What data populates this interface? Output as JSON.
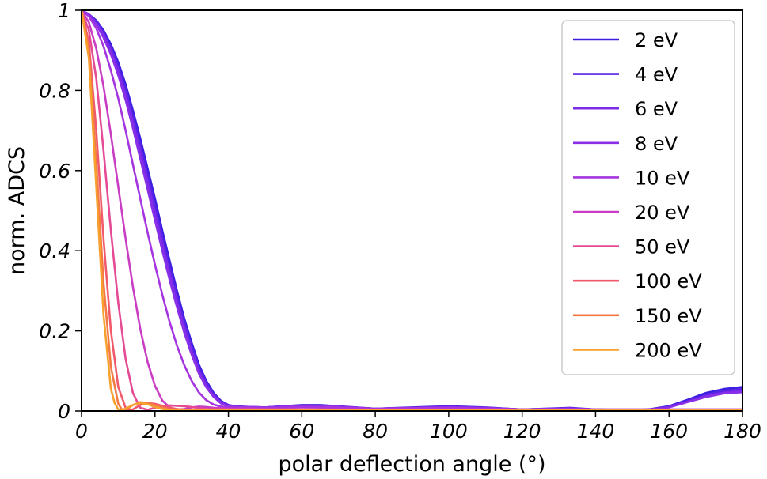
{
  "chart_data": {
    "type": "line",
    "title": "",
    "xlabel": "polar deflection angle (°)",
    "ylabel": "norm. ADCS",
    "xlim": [
      0,
      180
    ],
    "ylim": [
      0,
      1
    ],
    "xticks": [
      0,
      20,
      40,
      60,
      80,
      100,
      120,
      140,
      160,
      180
    ],
    "yticks": [
      0,
      0.2,
      0.4,
      0.6,
      0.8,
      1
    ],
    "ytick_labels": [
      "0",
      "0.2",
      "0.4",
      "0.6",
      "0.8",
      "1"
    ],
    "grid": false,
    "legend_position": "top-right",
    "series": [
      {
        "name": "2 eV",
        "color": "#3a1fe0",
        "x": [
          0,
          2,
          4,
          6,
          8,
          10,
          12,
          14,
          16,
          18,
          20,
          22,
          24,
          26,
          28,
          30,
          32,
          34,
          36,
          38,
          40,
          42,
          44,
          46,
          50,
          55,
          60,
          65,
          70,
          80,
          90,
          100,
          110,
          120,
          133,
          140,
          150,
          155,
          160,
          165,
          170,
          175,
          180
        ],
        "y": [
          1,
          0.99,
          0.975,
          0.95,
          0.915,
          0.87,
          0.815,
          0.75,
          0.68,
          0.605,
          0.53,
          0.45,
          0.375,
          0.3,
          0.23,
          0.17,
          0.115,
          0.075,
          0.045,
          0.025,
          0.015,
          0.012,
          0.011,
          0.01,
          0.009,
          0.012,
          0.015,
          0.015,
          0.012,
          0.006,
          0.009,
          0.012,
          0.009,
          0.004,
          0.008,
          0.004,
          0.002,
          0.005,
          0.012,
          0.028,
          0.045,
          0.055,
          0.06
        ]
      },
      {
        "name": "4 eV",
        "color": "#5a22e6",
        "x": [
          0,
          2,
          4,
          6,
          8,
          10,
          12,
          14,
          16,
          18,
          20,
          22,
          24,
          26,
          28,
          30,
          32,
          34,
          36,
          38,
          40,
          42,
          44,
          46,
          50,
          55,
          60,
          65,
          70,
          80,
          90,
          100,
          110,
          120,
          133,
          140,
          150,
          155,
          160,
          165,
          170,
          175,
          180
        ],
        "y": [
          1,
          0.99,
          0.972,
          0.945,
          0.908,
          0.86,
          0.803,
          0.737,
          0.665,
          0.59,
          0.513,
          0.435,
          0.36,
          0.288,
          0.22,
          0.16,
          0.108,
          0.07,
          0.042,
          0.023,
          0.014,
          0.011,
          0.01,
          0.01,
          0.009,
          0.012,
          0.014,
          0.014,
          0.011,
          0.006,
          0.008,
          0.011,
          0.008,
          0.004,
          0.007,
          0.004,
          0.002,
          0.004,
          0.01,
          0.025,
          0.04,
          0.05,
          0.055
        ]
      },
      {
        "name": "6 eV",
        "color": "#7a2ce8",
        "x": [
          0,
          2,
          4,
          6,
          8,
          10,
          12,
          14,
          16,
          18,
          20,
          22,
          24,
          26,
          28,
          30,
          32,
          34,
          36,
          38,
          40,
          42,
          44,
          46,
          50,
          55,
          60,
          65,
          70,
          80,
          90,
          100,
          110,
          120,
          133,
          140,
          150,
          155,
          160,
          165,
          170,
          175,
          180
        ],
        "y": [
          1,
          0.99,
          0.97,
          0.94,
          0.9,
          0.85,
          0.79,
          0.722,
          0.648,
          0.572,
          0.495,
          0.418,
          0.344,
          0.274,
          0.208,
          0.15,
          0.1,
          0.064,
          0.038,
          0.021,
          0.013,
          0.011,
          0.01,
          0.01,
          0.009,
          0.011,
          0.013,
          0.013,
          0.011,
          0.006,
          0.008,
          0.01,
          0.008,
          0.004,
          0.007,
          0.004,
          0.002,
          0.004,
          0.01,
          0.023,
          0.037,
          0.046,
          0.05
        ]
      },
      {
        "name": "8 eV",
        "color": "#8a2ee8",
        "x": [
          0,
          2,
          4,
          6,
          8,
          10,
          12,
          14,
          16,
          18,
          20,
          22,
          24,
          26,
          28,
          30,
          32,
          34,
          36,
          38,
          40,
          42,
          44,
          46,
          50,
          55,
          60,
          65,
          70,
          80,
          90,
          100,
          110,
          120,
          133,
          140,
          150,
          155,
          160,
          165,
          170,
          175,
          180
        ],
        "y": [
          1,
          0.988,
          0.965,
          0.932,
          0.89,
          0.838,
          0.776,
          0.706,
          0.63,
          0.553,
          0.476,
          0.4,
          0.327,
          0.259,
          0.195,
          0.14,
          0.093,
          0.059,
          0.035,
          0.019,
          0.012,
          0.01,
          0.01,
          0.01,
          0.009,
          0.011,
          0.013,
          0.013,
          0.011,
          0.006,
          0.008,
          0.01,
          0.008,
          0.004,
          0.007,
          0.004,
          0.002,
          0.004,
          0.009,
          0.022,
          0.035,
          0.044,
          0.047
        ]
      },
      {
        "name": "10 eV",
        "color": "#a535e0",
        "x": [
          0,
          2,
          4,
          6,
          8,
          10,
          12,
          14,
          16,
          18,
          20,
          22,
          24,
          26,
          28,
          30,
          32,
          34,
          36,
          38,
          40,
          42,
          44,
          46,
          50,
          55,
          60,
          70,
          80,
          90,
          100,
          110,
          120,
          140,
          160,
          180
        ],
        "y": [
          1,
          0.985,
          0.955,
          0.91,
          0.85,
          0.78,
          0.7,
          0.615,
          0.53,
          0.445,
          0.365,
          0.29,
          0.222,
          0.163,
          0.114,
          0.075,
          0.046,
          0.027,
          0.016,
          0.011,
          0.01,
          0.01,
          0.01,
          0.009,
          0.008,
          0.009,
          0.01,
          0.009,
          0.006,
          0.007,
          0.008,
          0.006,
          0.004,
          0.004,
          0.004,
          0.004
        ]
      },
      {
        "name": "20 eV",
        "color": "#c93cc4",
        "x": [
          0,
          2,
          4,
          6,
          8,
          10,
          12,
          14,
          16,
          18,
          20,
          22,
          24,
          26,
          28,
          30,
          32,
          34,
          36,
          40,
          45,
          50,
          60,
          80,
          100,
          120,
          140,
          160,
          180
        ],
        "y": [
          1,
          0.97,
          0.905,
          0.81,
          0.69,
          0.56,
          0.43,
          0.31,
          0.205,
          0.122,
          0.063,
          0.026,
          0.009,
          0.004,
          0.005,
          0.009,
          0.011,
          0.01,
          0.008,
          0.006,
          0.006,
          0.005,
          0.005,
          0.004,
          0.004,
          0.004,
          0.004,
          0.004,
          0.004
        ]
      },
      {
        "name": "50 eV",
        "color": "#e54a95",
        "x": [
          0,
          2,
          4,
          6,
          8,
          10,
          12,
          14,
          16,
          18,
          20,
          22,
          24,
          26,
          28,
          30,
          32,
          34,
          40,
          50,
          60,
          80,
          100,
          120,
          140,
          160,
          180
        ],
        "y": [
          1,
          0.95,
          0.83,
          0.65,
          0.45,
          0.27,
          0.13,
          0.045,
          0.008,
          0.003,
          0.008,
          0.013,
          0.014,
          0.013,
          0.012,
          0.01,
          0.007,
          0.005,
          0.004,
          0.004,
          0.004,
          0.003,
          0.003,
          0.003,
          0.003,
          0.003,
          0.003
        ]
      },
      {
        "name": "100 eV",
        "color": "#f05a6a",
        "x": [
          0,
          2,
          4,
          6,
          8,
          10,
          12,
          13,
          14,
          16,
          18,
          20,
          22,
          24,
          26,
          30,
          40,
          60,
          100,
          140,
          180
        ],
        "y": [
          1,
          0.92,
          0.7,
          0.43,
          0.2,
          0.06,
          0.008,
          0.002,
          0.004,
          0.015,
          0.02,
          0.018,
          0.013,
          0.008,
          0.005,
          0.003,
          0.003,
          0.002,
          0.002,
          0.002,
          0.002
        ]
      },
      {
        "name": "150 eV",
        "color": "#f47a45",
        "x": [
          0,
          2,
          4,
          6,
          8,
          10,
          11,
          12,
          13,
          14,
          16,
          18,
          20,
          22,
          24,
          28,
          40,
          60,
          100,
          140,
          180
        ],
        "y": [
          1,
          0.9,
          0.62,
          0.32,
          0.11,
          0.018,
          0.004,
          0.003,
          0.008,
          0.015,
          0.022,
          0.02,
          0.014,
          0.008,
          0.004,
          0.002,
          0.002,
          0.002,
          0.002,
          0.002,
          0.002
        ]
      },
      {
        "name": "200 eV",
        "color": "#f7a02e",
        "x": [
          0,
          2,
          4,
          6,
          8,
          9,
          10,
          11,
          12,
          14,
          16,
          18,
          20,
          22,
          24,
          28,
          40,
          60,
          100,
          140,
          180
        ],
        "y": [
          1,
          0.88,
          0.56,
          0.24,
          0.055,
          0.02,
          0.004,
          0.002,
          0.006,
          0.015,
          0.02,
          0.017,
          0.01,
          0.005,
          0.003,
          0.002,
          0.002,
          0.002,
          0.002,
          0.002,
          0.002
        ]
      }
    ]
  }
}
